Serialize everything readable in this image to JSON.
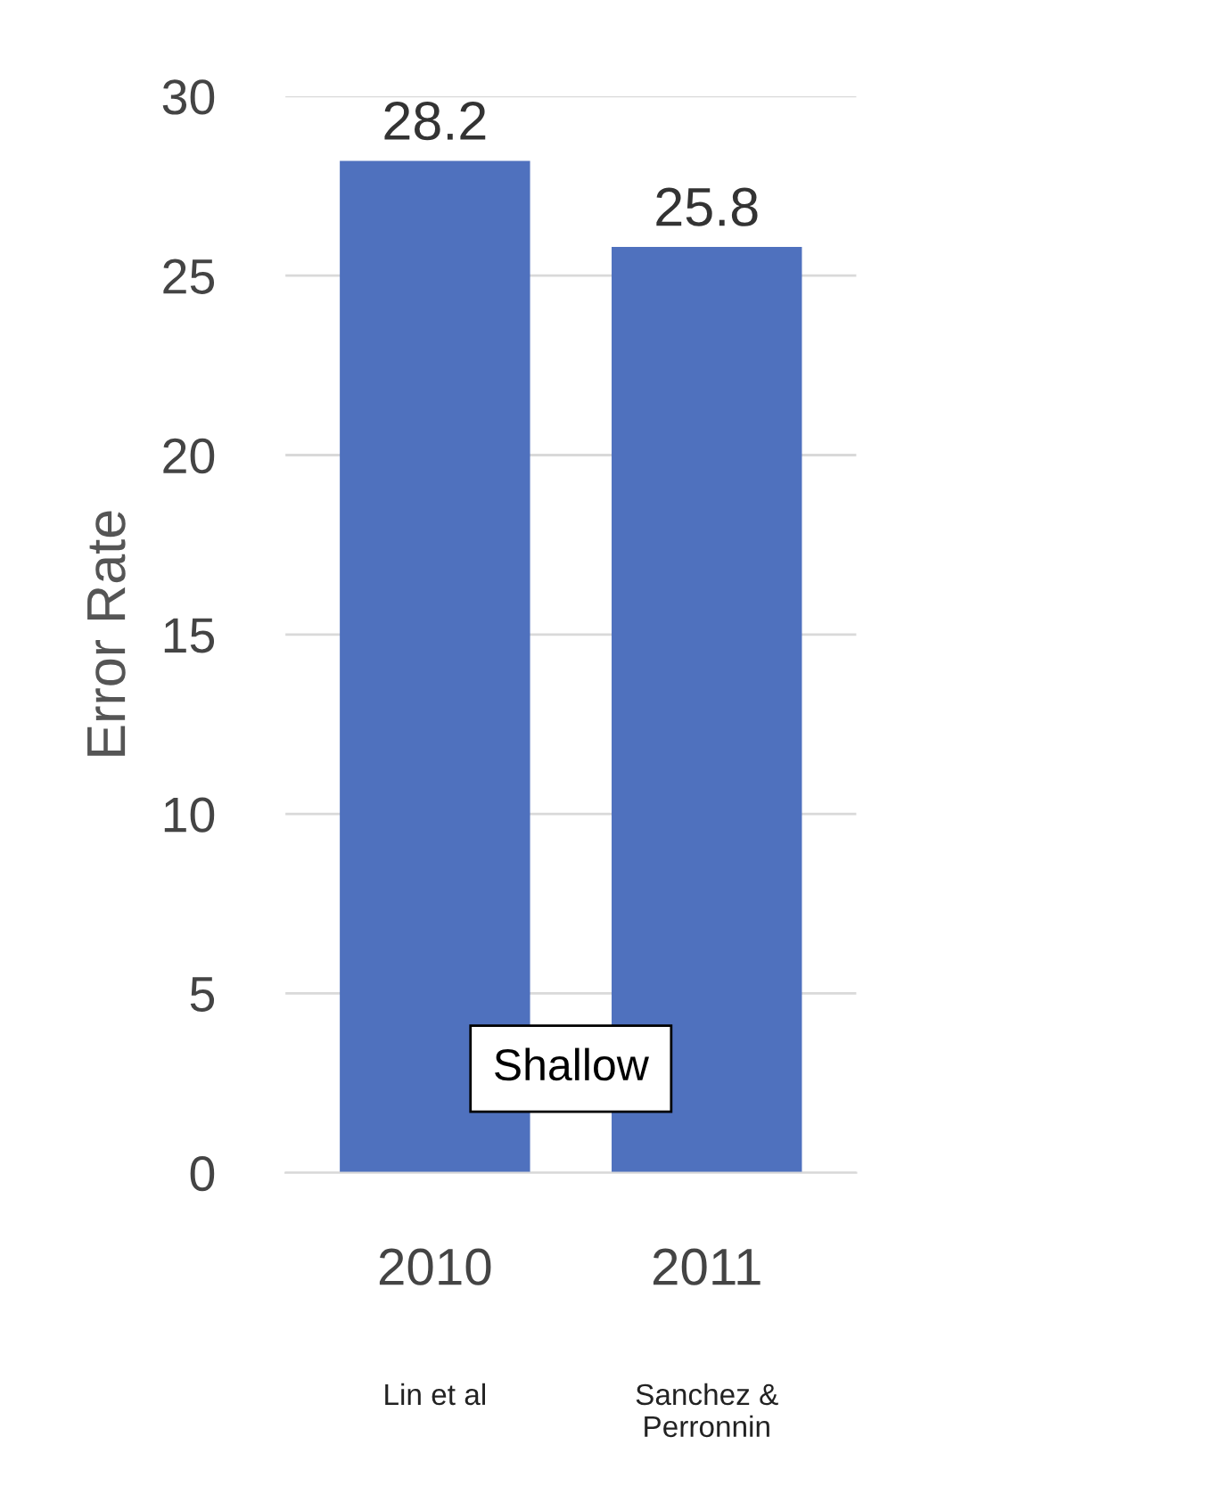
{
  "chart_data": {
    "type": "bar",
    "ylabel": "Error Rate",
    "categories": [
      "2010",
      "2011"
    ],
    "values": [
      28.2,
      25.8
    ],
    "color": "#4f71be",
    "data_labels": true,
    "ylim": [
      0,
      30
    ],
    "yticks": [
      0,
      5,
      10,
      15,
      20,
      25,
      30
    ],
    "grid": "y",
    "annotations": [
      "Shallow",
      "Lin et al",
      "Sanchez &\nPerronnin"
    ]
  }
}
